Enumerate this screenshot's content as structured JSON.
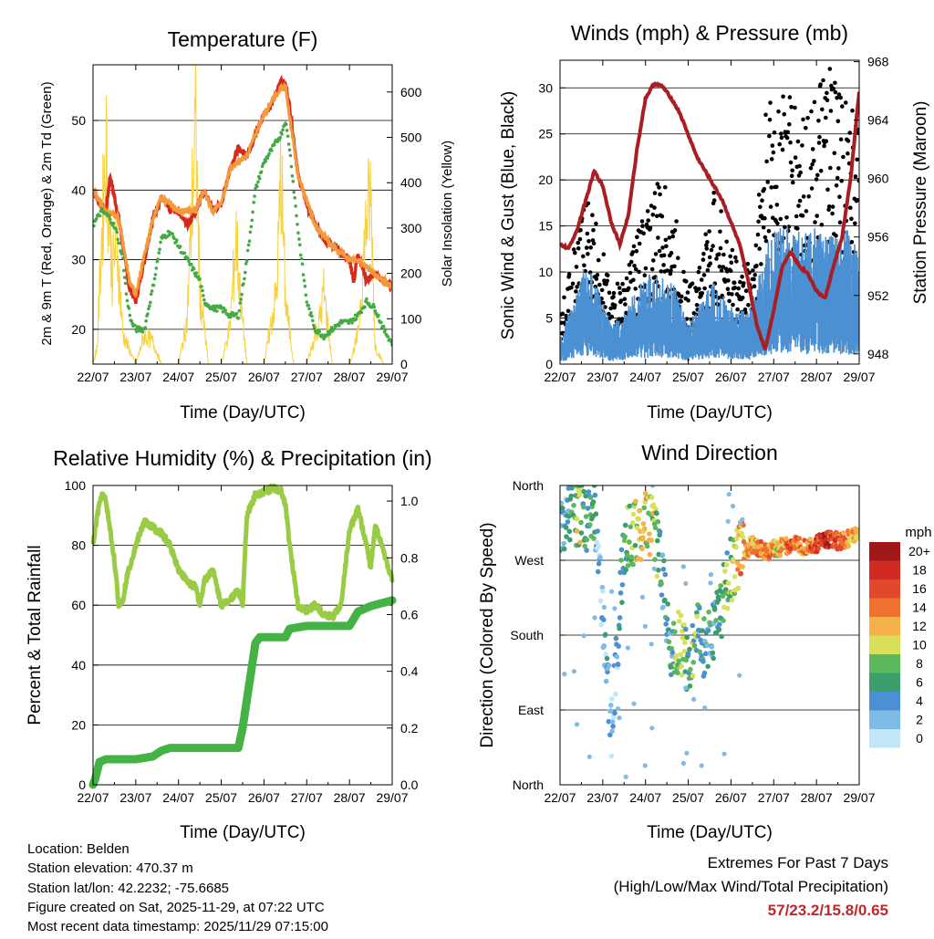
{
  "temperature": {
    "title": "Temperature (F)",
    "left_ylabel": "2m & 9m T (Red, Orange) & 2m Td (Green)",
    "right_ylabel": "Solar Insolation (Yellow)",
    "xlabel": "Time (Day/UTC)"
  },
  "winds": {
    "title": "Winds (mph) & Pressure (mb)",
    "left_ylabel": "Sonic Wind & Gust (Blue, Black)",
    "right_ylabel": "Station Pressure (Maroon)",
    "xlabel": "Time (Day/UTC)"
  },
  "humidity": {
    "title": "Relative Humidity (%) & Precipitation (in)",
    "left_ylabel": "Percent & Total Rainfall",
    "xlabel": "Time (Day/UTC)"
  },
  "direction": {
    "title": "Wind Direction",
    "left_ylabel": "Direction (Colored By Speed)",
    "xlabel": "Time (Day/UTC)",
    "legend_title": "mph"
  },
  "footer": {
    "location": "Location: Belden",
    "elevation": "Station elevation: 470.37 m",
    "latlon": "Station lat/lon: 42.2232; -75.6685",
    "created": "Figure created on Sat, 2025-11-29, at 07:22 UTC",
    "recent": "Most recent data timestamp: 2025/11/29 07:15:00",
    "extremes_title": "Extremes For Past 7 Days",
    "extremes_subtitle": "(High/Low/Max Wind/Total Precipitation)",
    "extremes_values": "57/23.2/15.8/0.65"
  },
  "colors": {
    "temp_2m": "#d42a1e",
    "temp_9m": "#f59a3c",
    "dewpoint": "#44aa44",
    "solar": "#f7d23e",
    "gust": "#000000",
    "wind": "#4a90d2",
    "pressure": "#a81e22",
    "rh": "#99cc44",
    "precip": "#44b244",
    "extremes": "#c0272d"
  },
  "chart_data": [
    {
      "id": "temperature",
      "type": "line",
      "title": "Temperature (F)",
      "xlabel": "Time (Day/UTC)",
      "ylabel": "2m & 9m T (Red, Orange) & 2m Td (Green)",
      "y2label": "Solar Insolation (Yellow)",
      "categories": [
        "22/07",
        "23/07",
        "24/07",
        "25/07",
        "26/07",
        "27/07",
        "28/07",
        "29/07"
      ],
      "ylim": [
        15,
        58
      ],
      "yticks": [
        20,
        30,
        40,
        50
      ],
      "y2lim": [
        0,
        660
      ],
      "y2ticks": [
        0,
        100,
        200,
        300,
        400,
        500,
        600
      ],
      "series": [
        {
          "name": "2m T",
          "color": "#d42a1e",
          "x": [
            0,
            0.15,
            0.3,
            0.4,
            0.6,
            0.75,
            0.85,
            1.0,
            1.2,
            1.4,
            1.6,
            1.8,
            2.0,
            2.2,
            2.4,
            2.6,
            2.8,
            3.0,
            3.2,
            3.4,
            3.6,
            3.8,
            4.0,
            4.15,
            4.3,
            4.4,
            4.5,
            4.6,
            4.8,
            5.0,
            5.2,
            5.4,
            5.6,
            5.8,
            6.0,
            6.1,
            6.2,
            6.4,
            6.6,
            6.8,
            7.0
          ],
          "y": [
            40,
            38,
            37,
            42,
            36,
            30,
            26,
            24,
            30,
            36,
            39,
            37,
            37,
            35,
            37,
            40,
            37,
            38,
            43,
            46,
            45,
            48,
            51,
            52,
            54,
            56,
            55,
            52,
            42,
            38,
            35,
            33,
            32,
            31,
            30,
            27,
            31,
            27,
            28,
            27,
            26
          ]
        },
        {
          "name": "9m T",
          "color": "#f59a3c",
          "x": [
            0,
            0.3,
            0.6,
            0.85,
            1.0,
            1.4,
            1.6,
            2.0,
            2.4,
            2.6,
            2.8,
            3.0,
            3.2,
            3.6,
            4.0,
            4.3,
            4.5,
            4.8,
            5.2,
            5.6,
            6.0,
            6.2,
            6.6,
            7.0
          ],
          "y": [
            40,
            37,
            36,
            27,
            25,
            36,
            39,
            37,
            37,
            40,
            37,
            38,
            43,
            45,
            51,
            54,
            55,
            42,
            35,
            32,
            30,
            30,
            28,
            26
          ]
        },
        {
          "name": "2m Td",
          "color": "#44aa44",
          "x": [
            0,
            0.2,
            0.4,
            0.55,
            0.7,
            0.8,
            0.9,
            1.0,
            1.2,
            1.4,
            1.6,
            1.8,
            2.0,
            2.2,
            2.4,
            2.5,
            2.6,
            2.8,
            3.0,
            3.2,
            3.4,
            3.6,
            3.8,
            4.0,
            4.2,
            4.4,
            4.5,
            4.6,
            4.8,
            5.0,
            5.2,
            5.4,
            5.6,
            5.8,
            6.0,
            6.2,
            6.4,
            6.6,
            6.8,
            7.0
          ],
          "y": [
            35,
            37,
            36,
            34,
            30,
            24,
            21,
            20,
            20,
            26,
            33,
            34,
            32,
            30,
            28,
            27,
            24,
            23,
            23,
            22,
            22,
            30,
            40,
            44,
            46,
            48,
            50,
            46,
            34,
            24,
            20,
            19,
            20,
            21,
            21,
            22,
            24,
            23,
            20,
            18
          ]
        },
        {
          "name": "Solar Insolation",
          "color": "#f7d23e",
          "axis": "y2",
          "x": [
            0,
            0.1,
            0.2,
            0.3,
            0.45,
            0.55,
            0.7,
            1.0,
            1.2,
            1.4,
            1.6,
            2.0,
            2.2,
            2.35,
            2.4,
            2.5,
            2.7,
            3.0,
            3.2,
            3.35,
            3.45,
            3.6,
            4.0,
            4.3,
            4.4,
            4.5,
            4.7,
            5.0,
            5.3,
            5.4,
            5.6,
            6.0,
            6.2,
            6.4,
            6.5,
            6.6,
            6.8,
            7.0
          ],
          "y": [
            0,
            50,
            350,
            600,
            250,
            350,
            80,
            0,
            80,
            60,
            0,
            0,
            120,
            540,
            640,
            200,
            0,
            0,
            100,
            350,
            180,
            0,
            0,
            200,
            540,
            180,
            0,
            0,
            120,
            200,
            0,
            0,
            80,
            400,
            460,
            50,
            0,
            0
          ]
        }
      ]
    },
    {
      "id": "winds",
      "type": "line",
      "title": "Winds (mph) & Pressure (mb)",
      "xlabel": "Time (Day/UTC)",
      "ylabel": "Sonic Wind & Gust (Blue, Black)",
      "y2label": "Station Pressure (Maroon)",
      "categories": [
        "22/07",
        "23/07",
        "24/07",
        "25/07",
        "26/07",
        "27/07",
        "28/07",
        "29/07"
      ],
      "ylim": [
        0,
        33
      ],
      "yticks": [
        0,
        5,
        10,
        15,
        20,
        25,
        30
      ],
      "y2lim": [
        947.3,
        968.1
      ],
      "y2ticks": [
        948,
        952,
        956,
        960,
        964,
        968
      ],
      "series": [
        {
          "name": "Sonic Wind",
          "color": "#4a90d2",
          "x": [
            0,
            0.3,
            0.6,
            0.9,
            1.2,
            1.5,
            1.8,
            2.1,
            2.4,
            2.7,
            3.0,
            3.3,
            3.6,
            3.9,
            4.2,
            4.5,
            4.8,
            5.1,
            5.4,
            5.7,
            6.0,
            6.3,
            6.6,
            7.0
          ],
          "y": [
            2,
            5,
            8,
            6,
            3,
            4,
            6,
            7,
            7,
            6,
            3,
            5,
            7,
            5,
            4,
            5,
            9,
            11,
            11,
            10,
            11,
            10,
            11,
            9
          ]
        },
        {
          "name": "Gust",
          "color": "#000000",
          "x": [
            0,
            0.3,
            0.6,
            0.9,
            1.2,
            1.5,
            1.8,
            2.1,
            2.4,
            2.7,
            3.0,
            3.3,
            3.6,
            3.9,
            4.2,
            4.5,
            4.8,
            5.1,
            5.4,
            5.7,
            6.0,
            6.3,
            6.6,
            7.0
          ],
          "y": [
            4,
            9,
            14,
            11,
            6,
            7,
            11,
            14,
            15,
            12,
            6,
            9,
            14,
            11,
            8,
            9,
            20,
            23,
            22,
            21,
            22,
            24,
            23,
            20
          ]
        },
        {
          "name": "Station Pressure",
          "color": "#a81e22",
          "axis": "y2",
          "x": [
            0,
            0.2,
            0.4,
            0.6,
            0.8,
            1.0,
            1.2,
            1.4,
            1.6,
            1.8,
            2.0,
            2.2,
            2.4,
            2.6,
            2.8,
            3.0,
            3.2,
            3.4,
            3.6,
            3.8,
            4.0,
            4.2,
            4.4,
            4.6,
            4.8,
            5.0,
            5.2,
            5.4,
            5.6,
            5.8,
            6.0,
            6.2,
            6.4,
            6.6,
            6.8,
            7.0
          ],
          "y": [
            955.5,
            955.2,
            956.5,
            958.5,
            960.5,
            959.5,
            957.0,
            955.5,
            957.5,
            962.0,
            965.5,
            966.5,
            966.3,
            965.5,
            964.5,
            963.0,
            961.5,
            960.5,
            959.5,
            958.5,
            957.0,
            955.5,
            953.0,
            950.0,
            948.3,
            951.0,
            954.0,
            955.0,
            954.0,
            953.5,
            952.3,
            951.8,
            954.0,
            956.0,
            960.0,
            966.0
          ]
        }
      ]
    },
    {
      "id": "humidity",
      "type": "line",
      "title": "Relative Humidity (%) & Precipitation (in)",
      "xlabel": "Time (Day/UTC)",
      "ylabel": "Percent & Total Rainfall",
      "categories": [
        "22/07",
        "23/07",
        "24/07",
        "25/07",
        "26/07",
        "27/07",
        "28/07",
        "29/07"
      ],
      "ylim": [
        0,
        100
      ],
      "yticks": [
        0,
        20,
        40,
        60,
        80,
        100
      ],
      "y2lim": [
        0,
        1.055
      ],
      "y2ticks": [
        0.0,
        0.2,
        0.4,
        0.6,
        0.8,
        1.0
      ],
      "series": [
        {
          "name": "Relative Humidity",
          "color": "#99cc44",
          "x": [
            0,
            0.1,
            0.2,
            0.3,
            0.4,
            0.5,
            0.6,
            0.7,
            0.8,
            1.0,
            1.2,
            1.4,
            1.6,
            1.8,
            2.0,
            2.2,
            2.4,
            2.5,
            2.6,
            2.8,
            3.0,
            3.2,
            3.4,
            3.5,
            3.6,
            3.8,
            4.0,
            4.2,
            4.4,
            4.5,
            4.6,
            4.8,
            5.0,
            5.2,
            5.4,
            5.6,
            5.8,
            6.0,
            6.2,
            6.4,
            6.5,
            6.6,
            6.8,
            7.0
          ],
          "y": [
            80,
            90,
            97,
            95,
            85,
            75,
            60,
            62,
            70,
            80,
            88,
            86,
            84,
            80,
            72,
            68,
            66,
            60,
            68,
            72,
            60,
            62,
            65,
            60,
            90,
            97,
            98,
            99,
            98,
            94,
            80,
            60,
            58,
            60,
            57,
            56,
            60,
            85,
            92,
            80,
            72,
            87,
            78,
            68
          ]
        },
        {
          "name": "Total Precipitation",
          "color": "#44b244",
          "axis": "y2",
          "x": [
            0,
            0.05,
            0.15,
            0.3,
            1.0,
            1.4,
            1.6,
            1.8,
            2.0,
            3.0,
            3.4,
            3.5,
            3.6,
            3.7,
            3.8,
            3.9,
            4.0,
            4.5,
            4.6,
            5.0,
            6.0,
            6.2,
            6.5,
            7.0
          ],
          "y": [
            0.0,
            0.02,
            0.08,
            0.09,
            0.09,
            0.1,
            0.12,
            0.13,
            0.13,
            0.13,
            0.13,
            0.2,
            0.3,
            0.4,
            0.5,
            0.52,
            0.52,
            0.52,
            0.55,
            0.56,
            0.56,
            0.61,
            0.63,
            0.65
          ]
        }
      ]
    },
    {
      "id": "direction",
      "type": "scatter",
      "title": "Wind Direction",
      "xlabel": "Time (Day/UTC)",
      "ylabel": "Direction (Colored By Speed)",
      "categories": [
        "22/07",
        "23/07",
        "24/07",
        "25/07",
        "26/07",
        "27/07",
        "28/07",
        "29/07"
      ],
      "yticks": [
        "North",
        "East",
        "South",
        "West",
        "North"
      ],
      "ylim": [
        0,
        360
      ],
      "legend": {
        "title": "mph",
        "labels": [
          "0",
          "2",
          "4",
          "6",
          "8",
          "10",
          "12",
          "14",
          "16",
          "18",
          "20+"
        ],
        "colors": [
          "#c2e6f8",
          "#7fbbe6",
          "#4a90d2",
          "#3c9e6a",
          "#5cb85c",
          "#d8e05a",
          "#f7b14a",
          "#f07030",
          "#e04a2a",
          "#d12a22",
          "#a01818"
        ]
      },
      "points": [
        {
          "x": 0.1,
          "dir": 300,
          "speed": 3
        },
        {
          "x": 0.2,
          "dir": 330,
          "speed": 4
        },
        {
          "x": 0.3,
          "dir": 345,
          "speed": 7
        },
        {
          "x": 0.4,
          "dir": 320,
          "speed": 9
        },
        {
          "x": 0.5,
          "dir": 335,
          "speed": 8
        },
        {
          "x": 0.6,
          "dir": 310,
          "speed": 5
        },
        {
          "x": 0.8,
          "dir": 330,
          "speed": 6
        },
        {
          "x": 0.9,
          "dir": 280,
          "speed": 2
        },
        {
          "x": 1.0,
          "dir": 200,
          "speed": 1
        },
        {
          "x": 1.1,
          "dir": 150,
          "speed": 4
        },
        {
          "x": 1.2,
          "dir": 60,
          "speed": 1
        },
        {
          "x": 1.5,
          "dir": 290,
          "speed": 6
        },
        {
          "x": 1.7,
          "dir": 300,
          "speed": 8
        },
        {
          "x": 1.9,
          "dir": 310,
          "speed": 10
        },
        {
          "x": 2.0,
          "dir": 320,
          "speed": 11
        },
        {
          "x": 2.2,
          "dir": 305,
          "speed": 9
        },
        {
          "x": 2.4,
          "dir": 250,
          "speed": 4
        },
        {
          "x": 2.6,
          "dir": 160,
          "speed": 5
        },
        {
          "x": 2.8,
          "dir": 170,
          "speed": 9
        },
        {
          "x": 3.0,
          "dir": 150,
          "speed": 6
        },
        {
          "x": 3.2,
          "dir": 180,
          "speed": 7
        },
        {
          "x": 3.4,
          "dir": 160,
          "speed": 5
        },
        {
          "x": 3.6,
          "dir": 190,
          "speed": 4
        },
        {
          "x": 3.8,
          "dir": 220,
          "speed": 7
        },
        {
          "x": 4.0,
          "dir": 260,
          "speed": 8
        },
        {
          "x": 4.2,
          "dir": 275,
          "speed": 13
        },
        {
          "x": 4.5,
          "dir": 290,
          "speed": 12
        },
        {
          "x": 4.8,
          "dir": 280,
          "speed": 14
        },
        {
          "x": 5.1,
          "dir": 285,
          "speed": 11
        },
        {
          "x": 5.4,
          "dir": 290,
          "speed": 15
        },
        {
          "x": 5.7,
          "dir": 285,
          "speed": 13
        },
        {
          "x": 6.0,
          "dir": 290,
          "speed": 16
        },
        {
          "x": 6.3,
          "dir": 295,
          "speed": 18
        },
        {
          "x": 6.6,
          "dir": 292,
          "speed": 14
        },
        {
          "x": 6.9,
          "dir": 300,
          "speed": 12
        }
      ]
    }
  ]
}
